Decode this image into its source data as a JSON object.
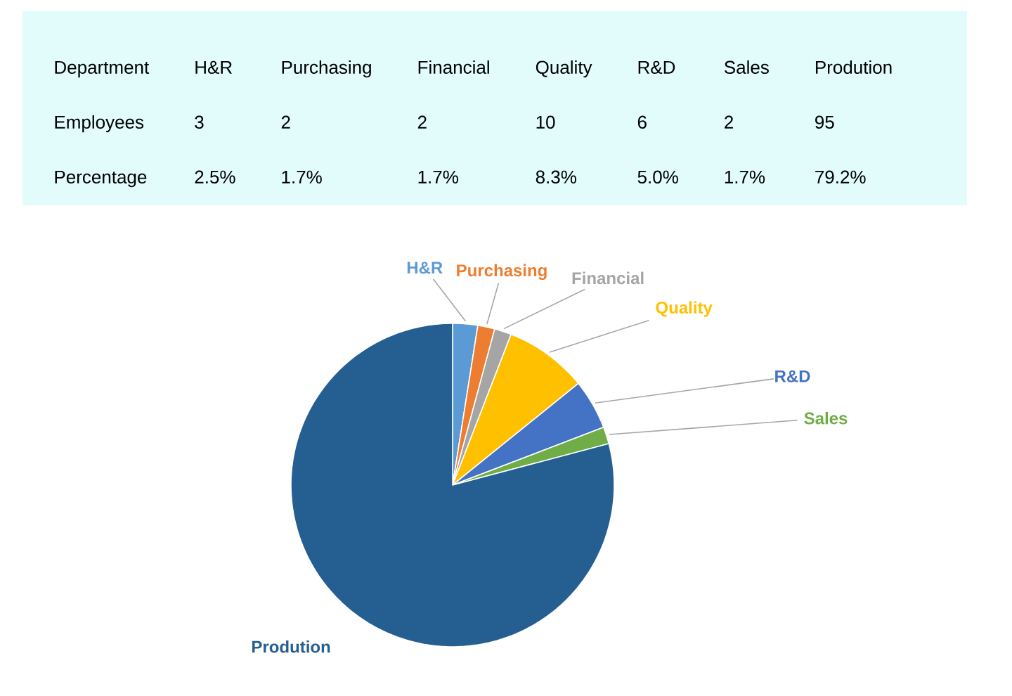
{
  "chart_data": [
    {
      "type": "other",
      "categories": [
        "H&R",
        "Purchasing",
        "Financial",
        "Quality",
        "R&D",
        "Sales",
        "Prodution"
      ],
      "values": [
        3,
        2,
        2,
        10,
        6,
        2,
        95
      ],
      "data_labels": true,
      "annotations": [
        "Department",
        "Employees",
        "Percentage",
        "2.5%",
        "1.7%",
        "1.7%",
        "8.3%",
        "5.0%",
        "1.7%",
        "79.2%"
      ]
    },
    {
      "type": "pie",
      "categories": [
        "H&R",
        "Purchasing",
        "Financial",
        "Quality",
        "R&D",
        "Sales",
        "Prodution"
      ],
      "values": [
        2.5,
        1.7,
        1.7,
        8.3,
        5.0,
        1.7,
        79.2
      ],
      "colors": [
        "#5b9bd5",
        "#ed7d31",
        "#a5a5a5",
        "#ffc000",
        "#4472c4",
        "#70ad47",
        "#255e91"
      ]
    }
  ]
}
